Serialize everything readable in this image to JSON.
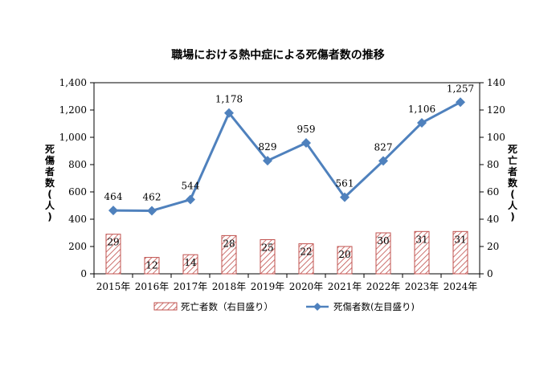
{
  "chart_data": {
    "type": "bar+line",
    "title": "職場における熱中症による死傷者数の推移",
    "categories": [
      "2015年",
      "2016年",
      "2017年",
      "2018年",
      "2019年",
      "2020年",
      "2021年",
      "2022年",
      "2023年",
      "2024年"
    ],
    "series": [
      {
        "name": "死亡者数（右目盛り）",
        "type": "bar",
        "axis": "right",
        "values": [
          29,
          12,
          14,
          28,
          25,
          22,
          20,
          30,
          31,
          31
        ],
        "color": "#c0504d",
        "pattern": "diagonal-hatch"
      },
      {
        "name": "死傷者数(左目盛り)",
        "type": "line",
        "axis": "left",
        "marker": "diamond",
        "values": [
          464,
          462,
          544,
          1178,
          829,
          959,
          561,
          827,
          1106,
          1257
        ],
        "value_labels": [
          "464",
          "462",
          "544",
          "1,178",
          "829",
          "959",
          "561",
          "827",
          "1,106",
          "1,257"
        ],
        "color": "#4f81bd"
      }
    ],
    "y_left": {
      "label": "死傷者数(人)",
      "ylim": [
        0,
        1400
      ],
      "ticks": [
        "0",
        "200",
        "400",
        "600",
        "800",
        "1,000",
        "1,200",
        "1,400"
      ]
    },
    "y_right": {
      "label": "死亡者数(人)",
      "ylim": [
        0,
        140
      ],
      "ticks": [
        "0",
        "20",
        "40",
        "60",
        "80",
        "100",
        "120",
        "140"
      ]
    },
    "grid": false,
    "legend": "bottom"
  }
}
